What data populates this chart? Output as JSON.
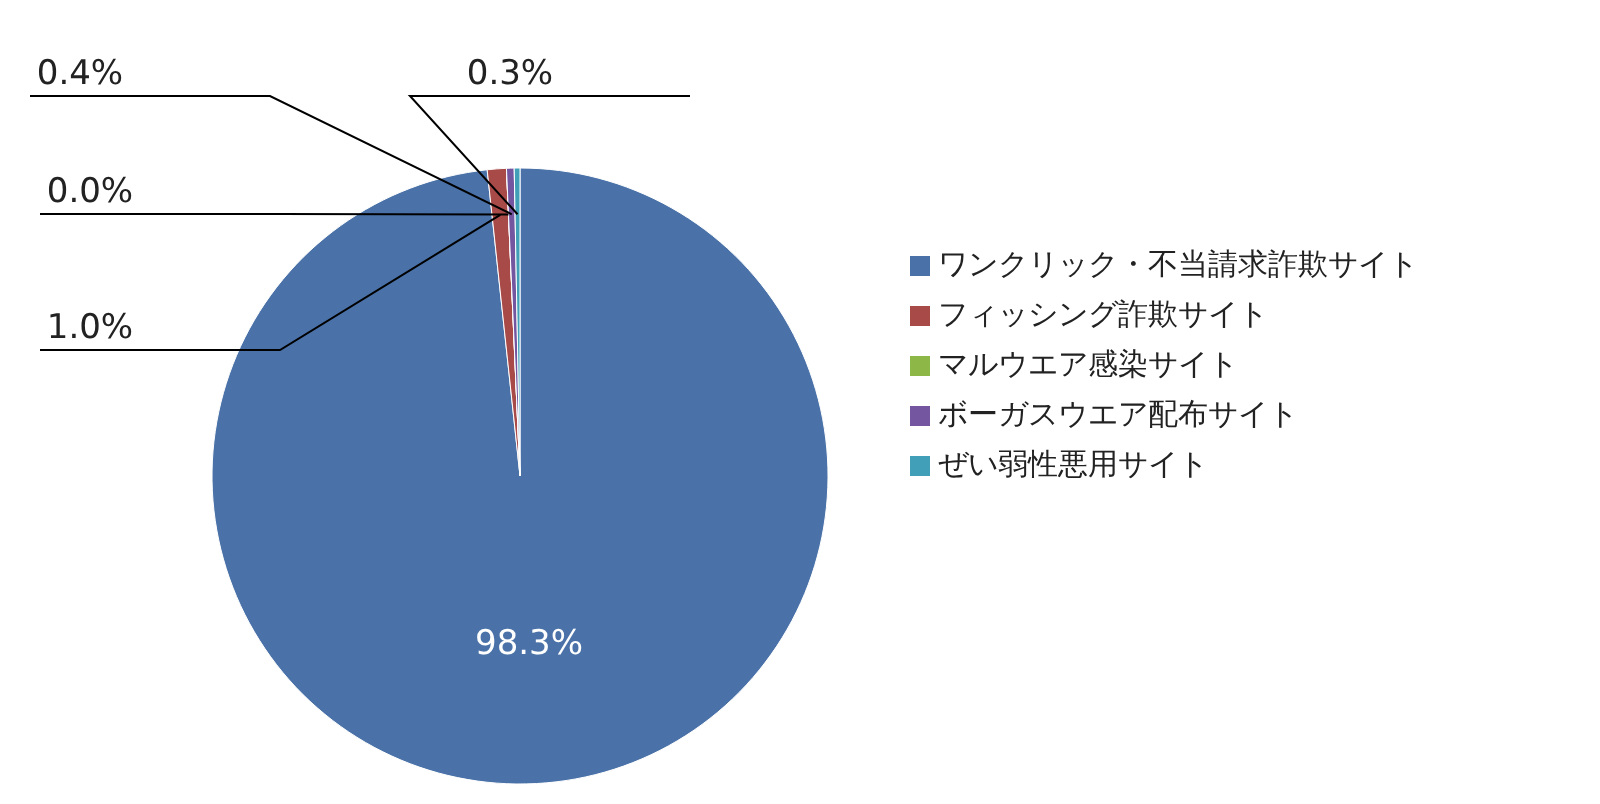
{
  "chart_data": {
    "type": "pie",
    "categories": [
      "ワンクリック・不当請求詐欺サイト",
      "フィッシング詐欺サイト",
      "マルウエア感染サイト",
      "ボーガスウエア配布サイト",
      "ぜい弱性悪用サイト"
    ],
    "values": [
      98.3,
      1.0,
      0.0,
      0.4,
      0.3
    ],
    "value_labels": [
      "98.3%",
      "1.0%",
      "0.0%",
      "0.4%",
      "0.3%"
    ],
    "colors": [
      "#4a72a8",
      "#a84a48",
      "#8db848",
      "#7355a0",
      "#41a0b8"
    ],
    "legend": "right"
  }
}
